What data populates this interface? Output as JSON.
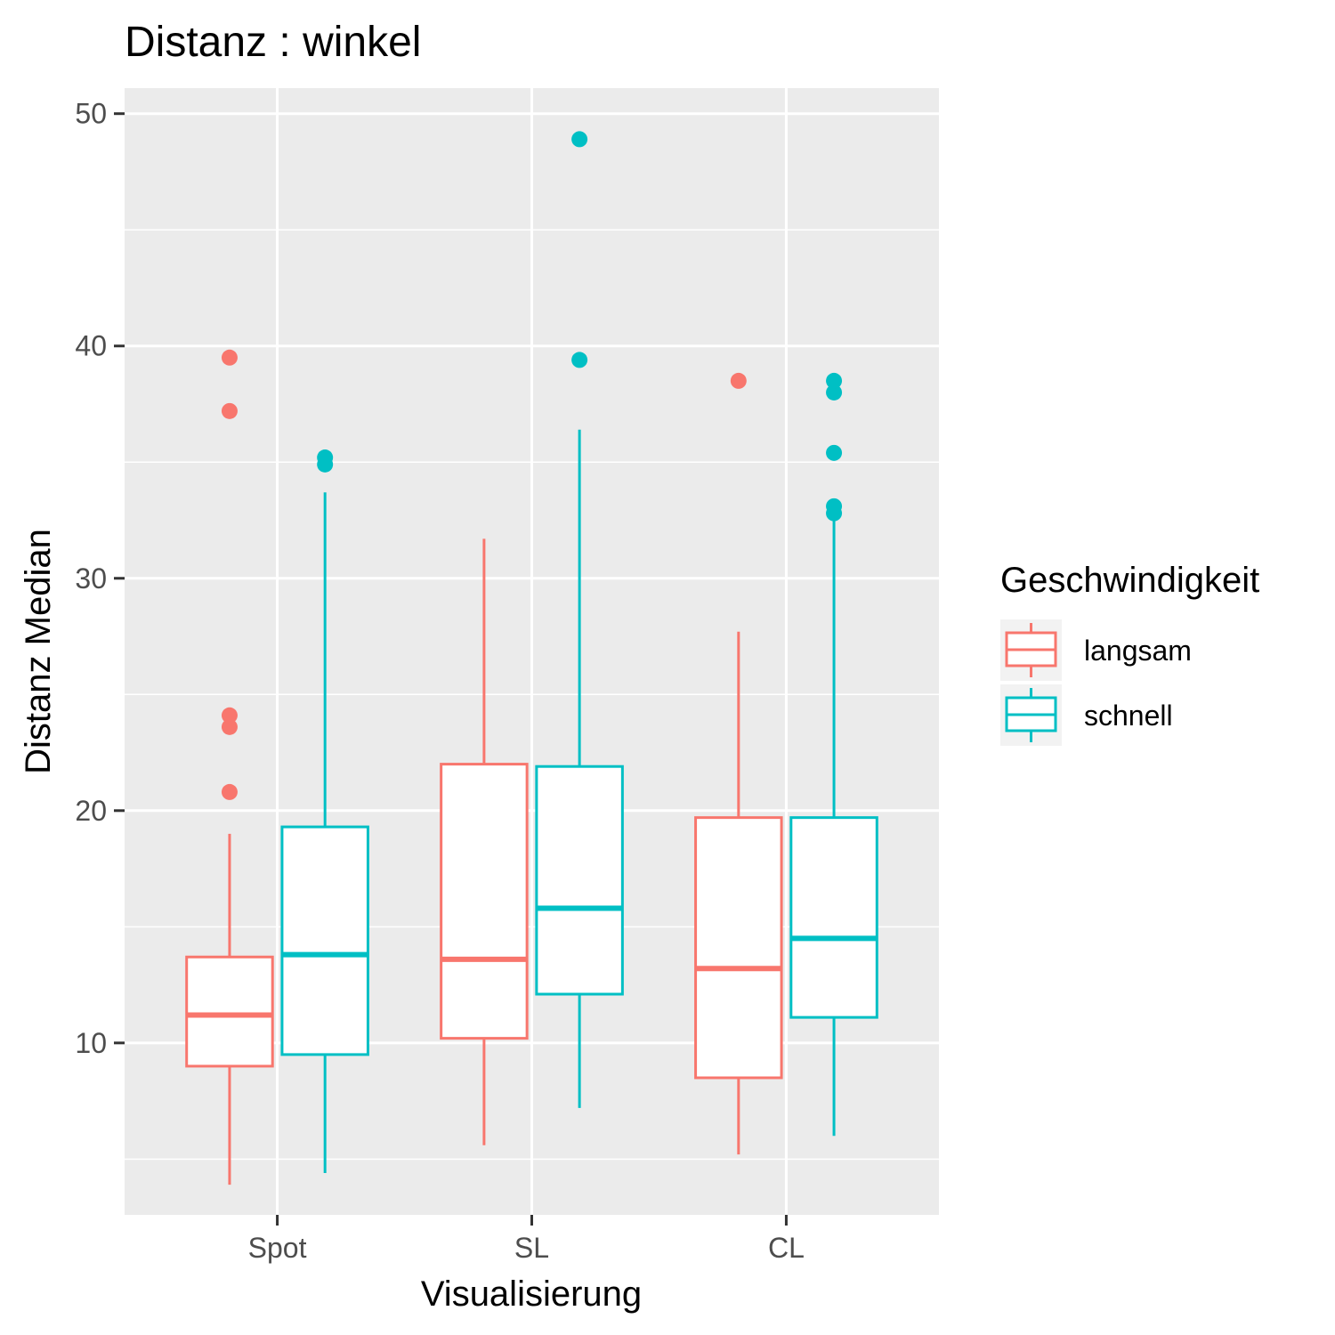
{
  "chart_data": {
    "type": "boxplot",
    "title": "Distanz : winkel",
    "xlabel": "Visualisierung",
    "ylabel": "Distanz Median",
    "categories": [
      "Spot",
      "SL",
      "CL"
    ],
    "ylim": [
      2.6,
      51.1
    ],
    "yticks": [
      10,
      20,
      30,
      40,
      50
    ],
    "grid": true,
    "legend": {
      "title": "Geschwindigkeit",
      "position": "right"
    },
    "series": [
      {
        "name": "langsam",
        "color": "#F8766D",
        "boxes": [
          {
            "category": "Spot",
            "whisker_low": 3.9,
            "q1": 9.0,
            "median": 11.2,
            "q3": 13.7,
            "whisker_high": 19.0,
            "outliers": [
              20.8,
              23.6,
              24.1,
              37.2,
              39.5
            ]
          },
          {
            "category": "SL",
            "whisker_low": 5.6,
            "q1": 10.2,
            "median": 13.6,
            "q3": 22.0,
            "whisker_high": 31.7,
            "outliers": []
          },
          {
            "category": "CL",
            "whisker_low": 5.2,
            "q1": 8.5,
            "median": 13.2,
            "q3": 19.7,
            "whisker_high": 27.7,
            "outliers": [
              38.5
            ]
          }
        ]
      },
      {
        "name": "schnell",
        "color": "#00BFC4",
        "boxes": [
          {
            "category": "Spot",
            "whisker_low": 4.4,
            "q1": 9.5,
            "median": 13.8,
            "q3": 19.3,
            "whisker_high": 33.7,
            "outliers": [
              34.9,
              35.2
            ]
          },
          {
            "category": "SL",
            "whisker_low": 7.2,
            "q1": 12.1,
            "median": 15.8,
            "q3": 21.9,
            "whisker_high": 36.4,
            "outliers": [
              39.4,
              48.9
            ]
          },
          {
            "category": "CL",
            "whisker_low": 6.0,
            "q1": 11.1,
            "median": 14.5,
            "q3": 19.7,
            "whisker_high": 32.6,
            "outliers": [
              32.8,
              33.1,
              35.4,
              38.0,
              38.5
            ]
          }
        ]
      }
    ]
  }
}
